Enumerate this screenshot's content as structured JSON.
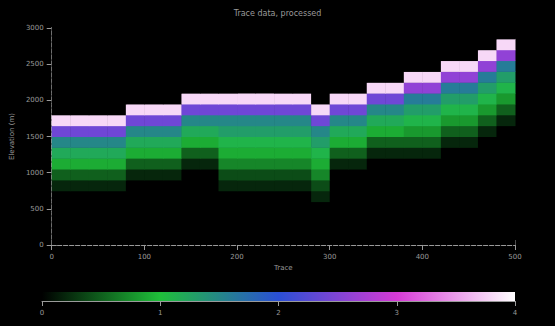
{
  "chart_data": {
    "type": "heatmap",
    "title": "Trace data, processed",
    "x_label": "Trace",
    "y_label": "Elevation (m)",
    "x_edges": [
      0,
      20,
      40,
      60,
      80,
      100,
      120,
      140,
      160,
      180,
      200,
      220,
      240,
      260,
      280,
      300,
      320,
      340,
      360,
      380,
      400,
      420,
      440,
      460,
      480,
      500
    ],
    "y_edges": [
      0,
      150,
      300,
      450,
      600,
      750,
      900,
      1050,
      1200,
      1350,
      1500,
      1650,
      1800,
      1950,
      2100,
      2250,
      2400,
      2550,
      2700,
      2850,
      3000
    ],
    "values": [
      [
        0,
        0,
        0,
        0,
        0,
        0,
        0,
        0,
        0,
        0,
        0,
        0,
        0,
        0,
        0,
        0,
        0,
        0,
        0,
        0,
        0,
        0,
        0,
        0,
        0
      ],
      [
        0,
        0,
        0,
        0,
        0,
        0,
        0,
        0,
        0,
        0,
        0,
        0,
        0,
        0,
        0,
        0,
        0,
        0,
        0,
        0,
        0,
        0,
        0,
        0,
        0
      ],
      [
        0,
        0,
        0,
        0,
        0,
        0,
        0,
        0,
        0,
        0,
        0,
        0,
        0,
        0,
        0,
        0,
        0,
        0,
        0,
        0,
        0,
        0,
        0,
        0,
        0
      ],
      [
        0,
        0,
        0,
        0,
        0,
        0,
        0,
        0,
        0,
        0,
        0,
        0,
        0,
        0,
        0,
        0,
        0,
        0,
        0,
        0,
        0,
        0,
        0,
        0,
        0
      ],
      [
        0,
        0,
        0,
        0,
        0,
        0,
        0,
        0,
        0,
        0,
        0,
        0,
        0,
        0,
        0.2,
        0,
        0,
        0,
        0,
        0,
        0,
        0,
        0,
        0,
        0
      ],
      [
        0.2,
        0.2,
        0.2,
        0.2,
        0,
        0,
        0,
        0,
        0,
        0.2,
        0.2,
        0.2,
        0.2,
        0.2,
        0.4,
        0,
        0,
        0,
        0,
        0,
        0,
        0,
        0,
        0,
        0
      ],
      [
        0.5,
        0.5,
        0.5,
        0.5,
        0.2,
        0.2,
        0.2,
        0,
        0,
        0.4,
        0.4,
        0.4,
        0.4,
        0.4,
        0.7,
        0,
        0,
        0,
        0,
        0,
        0,
        0,
        0,
        0,
        0
      ],
      [
        0.9,
        0.9,
        0.9,
        0.9,
        0.5,
        0.5,
        0.5,
        0.2,
        0.2,
        0.7,
        0.7,
        0.7,
        0.7,
        0.7,
        0.9,
        0.2,
        0.2,
        0,
        0,
        0,
        0,
        0,
        0,
        0,
        0
      ],
      [
        1.2,
        1.2,
        1.2,
        1.2,
        0.9,
        0.9,
        0.9,
        0.5,
        0.5,
        0.9,
        0.9,
        0.9,
        0.9,
        0.9,
        1.1,
        0.5,
        0.5,
        0.2,
        0.2,
        0.2,
        0.2,
        0,
        0,
        0,
        0
      ],
      [
        1.5,
        1.5,
        1.5,
        1.5,
        1.2,
        1.2,
        1.2,
        0.9,
        0.9,
        1.1,
        1.1,
        1.1,
        1.1,
        1.1,
        1.3,
        0.9,
        0.9,
        0.5,
        0.5,
        0.5,
        0.5,
        0.2,
        0.2,
        0,
        0
      ],
      [
        2.4,
        2.4,
        2.4,
        2.4,
        1.5,
        1.5,
        1.5,
        1.2,
        1.2,
        1.3,
        1.3,
        1.3,
        1.3,
        1.3,
        1.5,
        1.2,
        1.2,
        0.9,
        0.9,
        0.8,
        0.8,
        0.5,
        0.5,
        0.2,
        0
      ],
      [
        3.8,
        3.8,
        3.8,
        3.8,
        2.4,
        2.4,
        2.4,
        1.5,
        1.5,
        1.5,
        1.5,
        1.5,
        1.5,
        1.5,
        2.4,
        1.5,
        1.5,
        1.2,
        1.2,
        1.1,
        1.1,
        0.8,
        0.8,
        0.5,
        0.2
      ],
      [
        0,
        0,
        0,
        0,
        3.8,
        3.8,
        3.8,
        2.4,
        2.4,
        2.4,
        2.4,
        2.4,
        2.4,
        2.4,
        3.8,
        2.4,
        2.4,
        1.5,
        1.5,
        1.3,
        1.3,
        1.1,
        1.1,
        0.8,
        0.5
      ],
      [
        0,
        0,
        0,
        0,
        0,
        0,
        0,
        3.8,
        3.8,
        3.8,
        3.8,
        3.8,
        3.8,
        3.8,
        0,
        3.8,
        3.8,
        2.4,
        2.4,
        1.6,
        1.6,
        1.3,
        1.3,
        1.1,
        0.8
      ],
      [
        0,
        0,
        0,
        0,
        0,
        0,
        0,
        0,
        0,
        0,
        0,
        0,
        0,
        0,
        0,
        0,
        0,
        3.8,
        3.8,
        2.6,
        2.6,
        1.6,
        1.6,
        1.3,
        1.1
      ],
      [
        0,
        0,
        0,
        0,
        0,
        0,
        0,
        0,
        0,
        0,
        0,
        0,
        0,
        0,
        0,
        0,
        0,
        0,
        0,
        3.8,
        3.8,
        2.6,
        2.6,
        1.6,
        1.3
      ],
      [
        0,
        0,
        0,
        0,
        0,
        0,
        0,
        0,
        0,
        0,
        0,
        0,
        0,
        0,
        0,
        0,
        0,
        0,
        0,
        0,
        0,
        3.8,
        3.8,
        2.6,
        1.6
      ],
      [
        0,
        0,
        0,
        0,
        0,
        0,
        0,
        0,
        0,
        0,
        0,
        0,
        0,
        0,
        0,
        0,
        0,
        0,
        0,
        0,
        0,
        0,
        0,
        3.8,
        2.6
      ],
      [
        0,
        0,
        0,
        0,
        0,
        0,
        0,
        0,
        0,
        0,
        0,
        0,
        0,
        0,
        0,
        0,
        0,
        0,
        0,
        0,
        0,
        0,
        0,
        0,
        3.8
      ],
      [
        0,
        0,
        0,
        0,
        0,
        0,
        0,
        0,
        0,
        0,
        0,
        0,
        0,
        0,
        0,
        0,
        0,
        0,
        0,
        0,
        0,
        0,
        0,
        0,
        0
      ]
    ],
    "xlim": [
      0,
      500
    ],
    "xticks": [
      0,
      100,
      200,
      300,
      400,
      500
    ],
    "ylim": [
      0,
      3000
    ],
    "yticks": [
      0,
      500,
      1000,
      1500,
      2000,
      2500,
      3000
    ],
    "colorbar_range": [
      0,
      4
    ],
    "colorbar_ticks": [
      0,
      1,
      2,
      3,
      4
    ],
    "grid": false
  }
}
